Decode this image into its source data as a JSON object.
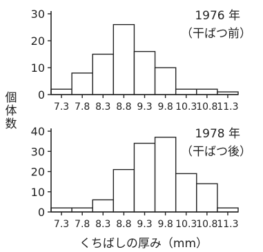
{
  "chart_data": [
    {
      "type": "bar",
      "title": "1976 年",
      "subtitle": "（干ばつ前）",
      "categories": [
        "7.3",
        "7.8",
        "8.3",
        "8.8",
        "9.3",
        "9.8",
        "10.3",
        "10.8",
        "11.3"
      ],
      "values": [
        2,
        8,
        15,
        26,
        16,
        10,
        2,
        2,
        1
      ],
      "bins": [
        7.0,
        7.5,
        8.0,
        8.5,
        9.0,
        9.5,
        10.0,
        10.5,
        11.0,
        11.5
      ],
      "ylim": [
        0,
        30
      ],
      "yticks": [
        "0",
        "10",
        "20",
        "30"
      ],
      "grid": false
    },
    {
      "type": "bar",
      "title": "1978 年",
      "subtitle": "（干ばつ後）",
      "categories": [
        "7.3",
        "7.8",
        "8.3",
        "8.8",
        "9.3",
        "9.8",
        "10.3",
        "10.8",
        "11.3"
      ],
      "values": [
        2,
        2,
        6,
        21,
        34,
        37,
        19,
        14,
        2
      ],
      "bins": [
        7.0,
        7.5,
        8.0,
        8.5,
        9.0,
        9.5,
        10.0,
        10.5,
        11.0,
        11.5
      ],
      "ylim": [
        0,
        40
      ],
      "yticks": [
        "0",
        "10",
        "20",
        "30",
        "40"
      ],
      "grid": false
    }
  ],
  "ylabel": [
    "個",
    "体",
    "数"
  ],
  "xlabel": "くちばしの厚み（mm）"
}
